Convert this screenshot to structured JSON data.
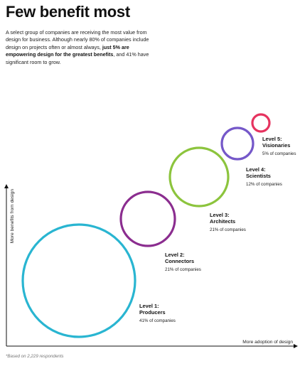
{
  "title": "Few benefit most",
  "intro": {
    "part1": "A select group of companies are receiving the most value from design for business. Although nearly 80% of companies include design on projects often or almost always, ",
    "bold": "just 5% are empowering design for the greatest benefits",
    "part2": ", and 41% have significant room to grow."
  },
  "footnote": "*Based on 2,229 respondents",
  "chart_data": {
    "type": "bubble",
    "title": "",
    "xlabel": "More adoption of design",
    "ylabel": "More benefits from design",
    "grid": false,
    "series": [
      {
        "label": "Level 1:",
        "name": "Producers",
        "percent_text": "41% of companies",
        "value": 41,
        "color": "#29b5d1"
      },
      {
        "label": "Level 2:",
        "name": "Connectors",
        "percent_text": "21% of companies",
        "value": 21,
        "color": "#8b2d8f"
      },
      {
        "label": "Level 3:",
        "name": "Architects",
        "percent_text": "21% of companies",
        "value": 21,
        "color": "#8cc43d"
      },
      {
        "label": "Level 4:",
        "name": "Scientists",
        "percent_text": "12% of companies",
        "value": 12,
        "color": "#7558c9"
      },
      {
        "label": "Level 5:",
        "name": "Visionaries",
        "percent_text": "5% of companies",
        "value": 5,
        "color": "#e6335f"
      }
    ]
  }
}
